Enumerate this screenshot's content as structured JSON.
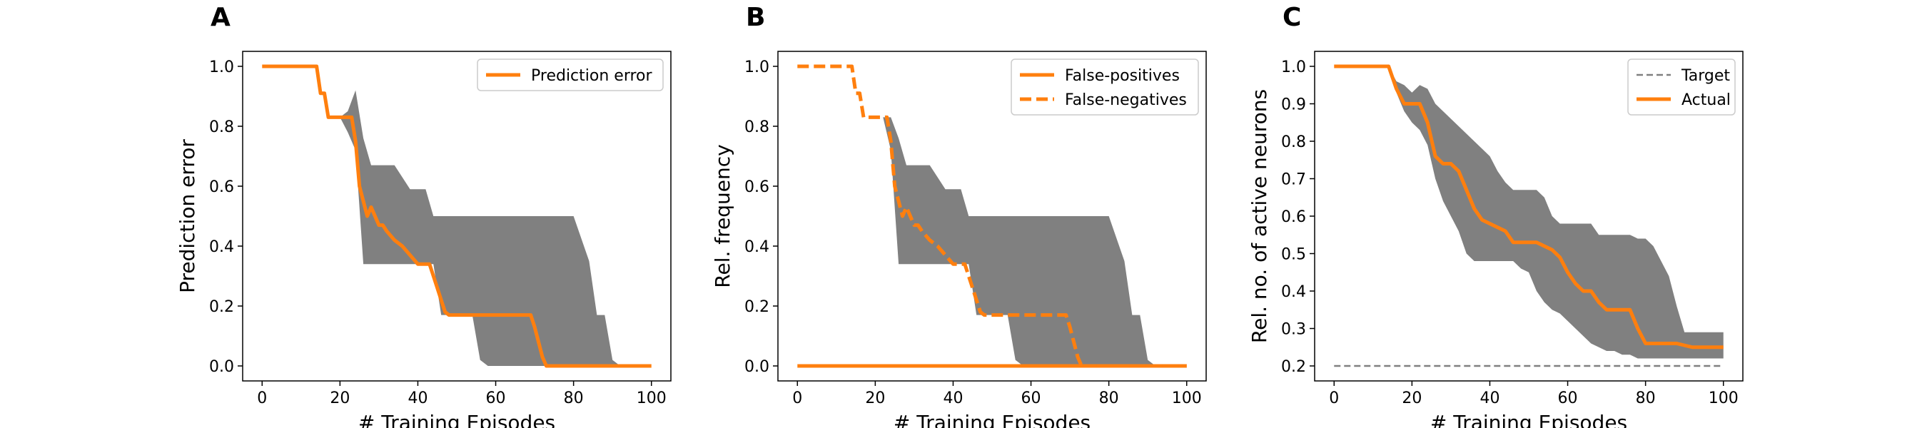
{
  "panels": [
    {
      "letter": "A"
    },
    {
      "letter": "B"
    },
    {
      "letter": "C"
    }
  ],
  "chart_data": [
    {
      "type": "line",
      "panel": "A",
      "xlabel": "# Training Episodes",
      "ylabel": "Prediction error",
      "xlim": [
        -5,
        105
      ],
      "ylim": [
        -0.05,
        1.05
      ],
      "xticks": [
        0,
        20,
        40,
        60,
        80,
        100
      ],
      "xtick_labels": [
        "0",
        "20",
        "40",
        "60",
        "80",
        "100"
      ],
      "yticks": [
        0.0,
        0.2,
        0.4,
        0.6,
        0.8,
        1.0
      ],
      "ytick_labels": [
        "0.0",
        "0.2",
        "0.4",
        "0.6",
        "0.8",
        "1.0"
      ],
      "legend_position": "top-right",
      "band": {
        "color": "#808080",
        "x": [
          0,
          14,
          16,
          18,
          20,
          22,
          24,
          26,
          28,
          30,
          34,
          38,
          40,
          42,
          44,
          46,
          48,
          50,
          54,
          56,
          58,
          60,
          62,
          64,
          66,
          68,
          70,
          72,
          74,
          76,
          78,
          80,
          84,
          86,
          88,
          90,
          92,
          100
        ],
        "upper": [
          1.0,
          1.0,
          0.91,
          0.83,
          0.83,
          0.85,
          0.92,
          0.76,
          0.67,
          0.67,
          0.67,
          0.59,
          0.59,
          0.59,
          0.5,
          0.5,
          0.5,
          0.5,
          0.5,
          0.5,
          0.5,
          0.5,
          0.5,
          0.5,
          0.5,
          0.5,
          0.5,
          0.5,
          0.5,
          0.5,
          0.5,
          0.5,
          0.35,
          0.17,
          0.17,
          0.02,
          0.0,
          0.0
        ],
        "lower": [
          1.0,
          1.0,
          0.91,
          0.83,
          0.83,
          0.78,
          0.72,
          0.34,
          0.34,
          0.34,
          0.34,
          0.34,
          0.34,
          0.34,
          0.34,
          0.17,
          0.17,
          0.17,
          0.17,
          0.02,
          0.0,
          0.0,
          0.0,
          0.0,
          0.0,
          0.0,
          0.0,
          0.0,
          0.0,
          0.0,
          0.0,
          0.0,
          0.0,
          0.0,
          0.0,
          0.0,
          0.0,
          0.0
        ]
      },
      "series": [
        {
          "name": "Prediction error",
          "style": "solid",
          "color": "#ff7f0e",
          "x": [
            0,
            14,
            15,
            16,
            17,
            18,
            19,
            20,
            22,
            23,
            24,
            25,
            26,
            27,
            28,
            29,
            30,
            31,
            32,
            34,
            36,
            38,
            40,
            42,
            43,
            44,
            46,
            47,
            48,
            50,
            52,
            54,
            56,
            60,
            64,
            68,
            69,
            70,
            71,
            72,
            73,
            76,
            80,
            84,
            88,
            92,
            96,
            100
          ],
          "y": [
            1.0,
            1.0,
            0.91,
            0.91,
            0.83,
            0.83,
            0.83,
            0.83,
            0.83,
            0.83,
            0.75,
            0.6,
            0.55,
            0.5,
            0.53,
            0.5,
            0.47,
            0.47,
            0.45,
            0.42,
            0.4,
            0.37,
            0.34,
            0.34,
            0.34,
            0.3,
            0.22,
            0.18,
            0.17,
            0.17,
            0.17,
            0.17,
            0.17,
            0.17,
            0.17,
            0.17,
            0.17,
            0.13,
            0.08,
            0.03,
            0.0,
            0.0,
            0.0,
            0.0,
            0.0,
            0.0,
            0.0,
            0.0
          ]
        }
      ]
    },
    {
      "type": "line",
      "panel": "B",
      "xlabel": "# Training Episodes",
      "ylabel": "Rel. frequency",
      "xlim": [
        -5,
        105
      ],
      "ylim": [
        -0.05,
        1.05
      ],
      "xticks": [
        0,
        20,
        40,
        60,
        80,
        100
      ],
      "xtick_labels": [
        "0",
        "20",
        "40",
        "60",
        "80",
        "100"
      ],
      "yticks": [
        0.0,
        0.2,
        0.4,
        0.6,
        0.8,
        1.0
      ],
      "ytick_labels": [
        "0.0",
        "0.2",
        "0.4",
        "0.6",
        "0.8",
        "1.0"
      ],
      "legend_position": "top-right",
      "band": {
        "color": "#808080",
        "x": [
          20,
          22,
          24,
          26,
          28,
          30,
          34,
          38,
          40,
          42,
          44,
          46,
          48,
          50,
          52,
          54,
          56,
          58,
          60,
          62,
          64,
          66,
          68,
          70,
          72,
          74,
          76,
          78,
          80,
          84,
          86,
          88,
          90,
          92,
          100
        ],
        "upper": [
          0.83,
          0.83,
          0.83,
          0.76,
          0.67,
          0.67,
          0.67,
          0.59,
          0.59,
          0.59,
          0.5,
          0.5,
          0.5,
          0.5,
          0.5,
          0.5,
          0.5,
          0.5,
          0.5,
          0.5,
          0.5,
          0.5,
          0.5,
          0.5,
          0.5,
          0.5,
          0.5,
          0.5,
          0.5,
          0.35,
          0.17,
          0.17,
          0.02,
          0.0,
          0.0
        ],
        "lower": [
          0.83,
          0.83,
          0.72,
          0.34,
          0.34,
          0.34,
          0.34,
          0.34,
          0.34,
          0.34,
          0.34,
          0.17,
          0.17,
          0.17,
          0.17,
          0.17,
          0.02,
          0.0,
          0.0,
          0.0,
          0.0,
          0.0,
          0.0,
          0.0,
          0.0,
          0.0,
          0.0,
          0.0,
          0.0,
          0.0,
          0.0,
          0.0,
          0.0,
          0.0,
          0.0
        ]
      },
      "series": [
        {
          "name": "False-positives",
          "style": "solid",
          "color": "#ff7f0e",
          "x": [
            0,
            100
          ],
          "y": [
            0.0,
            0.0
          ]
        },
        {
          "name": "False-negatives",
          "style": "dashed",
          "color": "#ff7f0e",
          "x": [
            0,
            14,
            15,
            16,
            17,
            18,
            19,
            20,
            22,
            23,
            24,
            25,
            26,
            27,
            28,
            29,
            30,
            31,
            32,
            34,
            36,
            38,
            40,
            42,
            43,
            44,
            46,
            47,
            48,
            50,
            52,
            54,
            56,
            60,
            64,
            68,
            69,
            70,
            71,
            72,
            73,
            76,
            80,
            84,
            88,
            92,
            96,
            100
          ],
          "y": [
            1.0,
            1.0,
            0.91,
            0.91,
            0.83,
            0.83,
            0.83,
            0.83,
            0.83,
            0.83,
            0.75,
            0.6,
            0.55,
            0.5,
            0.53,
            0.5,
            0.47,
            0.47,
            0.45,
            0.42,
            0.4,
            0.37,
            0.34,
            0.34,
            0.34,
            0.3,
            0.22,
            0.18,
            0.17,
            0.17,
            0.17,
            0.17,
            0.17,
            0.17,
            0.17,
            0.17,
            0.17,
            0.13,
            0.08,
            0.03,
            0.0,
            0.0,
            0.0,
            0.0,
            0.0,
            0.0,
            0.0,
            0.0
          ]
        }
      ]
    },
    {
      "type": "line",
      "panel": "C",
      "xlabel": "# Training Episodes",
      "ylabel": "Rel. no. of active neurons",
      "xlim": [
        -5,
        105
      ],
      "ylim": [
        0.16,
        1.04
      ],
      "xticks": [
        0,
        20,
        40,
        60,
        80,
        100
      ],
      "xtick_labels": [
        "0",
        "20",
        "40",
        "60",
        "80",
        "100"
      ],
      "yticks": [
        0.2,
        0.3,
        0.4,
        0.5,
        0.6,
        0.7,
        0.8,
        0.9,
        1.0
      ],
      "ytick_labels": [
        "0.2",
        "0.3",
        "0.4",
        "0.5",
        "0.6",
        "0.7",
        "0.8",
        "0.9",
        "1.0"
      ],
      "legend_position": "top-right",
      "band": {
        "color": "#808080",
        "x": [
          0,
          14,
          16,
          18,
          20,
          22,
          24,
          26,
          28,
          30,
          32,
          34,
          36,
          38,
          40,
          42,
          44,
          46,
          48,
          50,
          52,
          54,
          56,
          58,
          60,
          62,
          64,
          66,
          68,
          70,
          72,
          74,
          76,
          78,
          80,
          82,
          84,
          86,
          88,
          90,
          92,
          94,
          96,
          98,
          100
        ],
        "upper": [
          1.0,
          1.0,
          0.96,
          0.95,
          0.93,
          0.95,
          0.94,
          0.9,
          0.88,
          0.86,
          0.84,
          0.82,
          0.8,
          0.78,
          0.76,
          0.72,
          0.69,
          0.67,
          0.67,
          0.67,
          0.67,
          0.65,
          0.6,
          0.58,
          0.58,
          0.58,
          0.58,
          0.58,
          0.55,
          0.55,
          0.55,
          0.55,
          0.55,
          0.54,
          0.54,
          0.52,
          0.48,
          0.44,
          0.36,
          0.29,
          0.29,
          0.29,
          0.29,
          0.29,
          0.29
        ],
        "lower": [
          1.0,
          1.0,
          0.93,
          0.88,
          0.85,
          0.83,
          0.79,
          0.7,
          0.64,
          0.6,
          0.56,
          0.5,
          0.48,
          0.48,
          0.48,
          0.48,
          0.48,
          0.48,
          0.46,
          0.45,
          0.4,
          0.37,
          0.35,
          0.34,
          0.32,
          0.3,
          0.28,
          0.26,
          0.25,
          0.24,
          0.24,
          0.23,
          0.23,
          0.22,
          0.22,
          0.22,
          0.22,
          0.22,
          0.22,
          0.22,
          0.22,
          0.22,
          0.22,
          0.22,
          0.22
        ]
      },
      "series": [
        {
          "name": "Target",
          "style": "dashed",
          "color": "#808080",
          "x": [
            0,
            100
          ],
          "y": [
            0.2,
            0.2
          ]
        },
        {
          "name": "Actual",
          "style": "solid",
          "color": "#ff7f0e",
          "x": [
            0,
            14,
            16,
            18,
            20,
            22,
            24,
            26,
            28,
            30,
            32,
            34,
            36,
            38,
            40,
            44,
            46,
            48,
            50,
            52,
            54,
            56,
            58,
            60,
            62,
            64,
            66,
            68,
            70,
            72,
            74,
            76,
            78,
            80,
            84,
            88,
            92,
            96,
            100
          ],
          "y": [
            1.0,
            1.0,
            0.94,
            0.9,
            0.9,
            0.9,
            0.85,
            0.76,
            0.74,
            0.74,
            0.72,
            0.67,
            0.62,
            0.59,
            0.58,
            0.56,
            0.53,
            0.53,
            0.53,
            0.53,
            0.52,
            0.51,
            0.49,
            0.45,
            0.42,
            0.4,
            0.4,
            0.37,
            0.35,
            0.35,
            0.35,
            0.35,
            0.3,
            0.26,
            0.26,
            0.26,
            0.25,
            0.25,
            0.25
          ]
        }
      ]
    }
  ]
}
